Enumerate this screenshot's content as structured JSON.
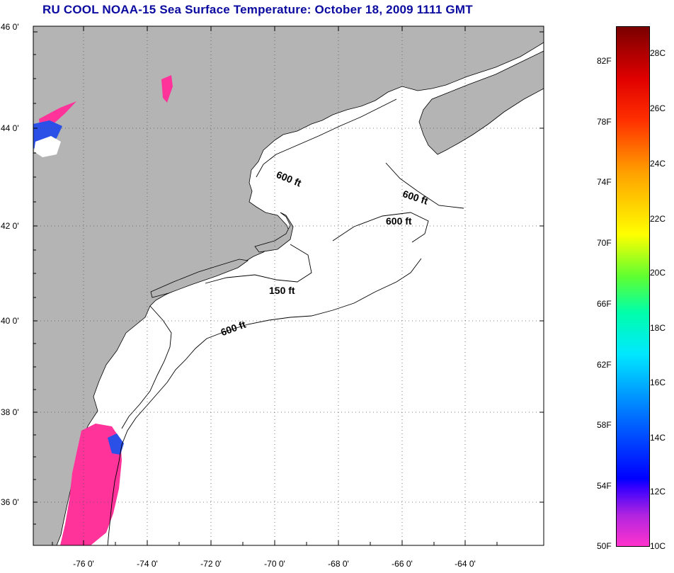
{
  "title": "RU COOL  NOAA-15  Sea Surface Temperature:  October 18, 2009 1111 GMT",
  "map": {
    "lat_ticks": [
      "46 0'",
      "44 0'",
      "42 0'",
      "40 0'",
      "38 0'",
      "36 0'"
    ],
    "lon_ticks": [
      "-76 0'",
      "-74 0'",
      "-72 0'",
      "-70 0'",
      "-68 0'",
      "-66 0'",
      "-64 0'"
    ],
    "contours": [
      "600 ft",
      "600 ft",
      "600 ft",
      "150 ft",
      "600 ft"
    ],
    "colors": {
      "land": "#b4b4b4",
      "water_cloud": "#ffffff",
      "cold_sst": "#ff3399",
      "cool_sst": "#2a50e8"
    }
  },
  "colorbar": {
    "fahrenheit": [
      "82F",
      "78F",
      "74F",
      "70F",
      "66F",
      "62F",
      "58F",
      "54F",
      "50F"
    ],
    "celsius": [
      "28C",
      "26C",
      "24C",
      "22C",
      "20C",
      "18C",
      "16C",
      "14C",
      "12C",
      "10C"
    ]
  }
}
